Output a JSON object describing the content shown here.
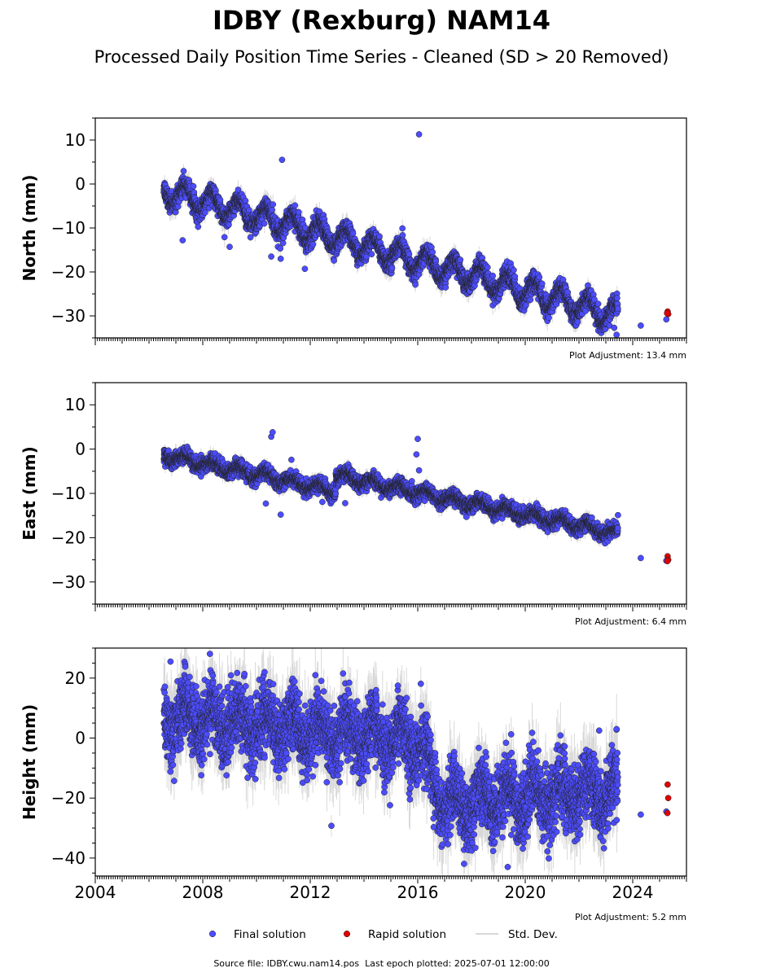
{
  "title": "IDBY (Rexburg) NAM14",
  "subtitle": "Processed Daily Position Time Series - Cleaned (SD > 20 Removed)",
  "footer": {
    "source_label": "Source file:",
    "source_file": "IDBY.cwu.nam14.pos",
    "last_epoch_label": "Last epoch plotted:",
    "last_epoch": "2025-07-01 12:00:00"
  },
  "legend": {
    "position": "bottom-center",
    "items": [
      {
        "label": "Final solution",
        "color": "#4c4cff",
        "marker": "circle"
      },
      {
        "label": "Rapid solution",
        "color": "#e00000",
        "marker": "circle"
      },
      {
        "label": "Std. Dev.",
        "color": "#cccccc",
        "marker": "line"
      }
    ]
  },
  "colors": {
    "final": "#4c4cff",
    "rapid": "#e00000",
    "stddev": "#bbbbbb",
    "marker_edge": "#222222"
  },
  "chart_data": [
    {
      "type": "scatter",
      "component": "north",
      "ylabel": "North (mm)",
      "xlim": [
        2004.0,
        2026.0
      ],
      "ylim": [
        -35,
        15
      ],
      "yticks": [
        10,
        0,
        -10,
        -20,
        -30
      ],
      "grid": false,
      "adjustment_label": "Plot Adjustment: 13.4 mm",
      "trend": [
        [
          2006.6,
          -1.5
        ],
        [
          2023.4,
          -30.0
        ]
      ],
      "seasonal_amplitude": 2.5,
      "noise_sd": 1.1,
      "series": [
        {
          "name": "Final solution",
          "start": 2006.55,
          "end": 2023.45,
          "outliers": [
            [
              2010.95,
              5.5
            ],
            [
              2016.05,
              11.3
            ],
            [
              2007.25,
              -12.8
            ],
            [
              2009.0,
              -14.3
            ],
            [
              2010.55,
              -16.5
            ],
            [
              2010.9,
              -17.0
            ],
            [
              2011.8,
              -19.3
            ],
            [
              2023.4,
              -34.3
            ]
          ],
          "isolated": [
            [
              2024.3,
              -32.2
            ],
            [
              2025.25,
              -30.8
            ]
          ]
        },
        {
          "name": "Rapid solution",
          "points": [
            [
              2025.3,
              -29.0
            ],
            [
              2025.32,
              -29.6
            ],
            [
              2025.28,
              -29.4
            ]
          ]
        }
      ]
    },
    {
      "type": "scatter",
      "component": "east",
      "ylabel": "East (mm)",
      "xlim": [
        2004.0,
        2026.0
      ],
      "ylim": [
        -35,
        15
      ],
      "yticks": [
        10,
        0,
        -10,
        -20,
        -30
      ],
      "grid": false,
      "adjustment_label": "Plot Adjustment: 6.4 mm",
      "trend": [
        [
          2006.6,
          -1.5
        ],
        [
          2023.4,
          -22.5
        ]
      ],
      "offset": {
        "at": 2012.95,
        "value": 3.5
      },
      "seasonal_amplitude": 0.9,
      "noise_sd": 0.8,
      "series": [
        {
          "name": "Final solution",
          "start": 2006.55,
          "end": 2023.45,
          "outliers": [
            [
              2010.55,
              2.8
            ],
            [
              2010.6,
              3.8
            ],
            [
              2016.0,
              2.3
            ],
            [
              2015.95,
              -1.2
            ],
            [
              2016.05,
              -4.8
            ],
            [
              2010.35,
              -12.3
            ],
            [
              2010.9,
              -14.8
            ],
            [
              2011.3,
              -2.4
            ],
            [
              2013.3,
              -12.2
            ],
            [
              2023.45,
              -14.9
            ]
          ],
          "isolated": [
            [
              2024.3,
              -24.6
            ],
            [
              2025.25,
              -25.2
            ]
          ]
        },
        {
          "name": "Rapid solution",
          "points": [
            [
              2025.3,
              -24.2
            ],
            [
              2025.32,
              -25.0
            ],
            [
              2025.29,
              -25.3
            ]
          ]
        }
      ]
    },
    {
      "type": "scatter",
      "component": "height",
      "ylabel": "Height (mm)",
      "xlim": [
        2004.0,
        2026.0
      ],
      "ylim": [
        -46,
        30
      ],
      "yticks": [
        20,
        0,
        -20,
        -40
      ],
      "xticks": [
        "2004",
        "2008",
        "2012",
        "2016",
        "2020",
        "2024"
      ],
      "grid": false,
      "adjustment_label": "Plot Adjustment: 5.2 mm",
      "trend": [
        [
          2006.6,
          7.0
        ],
        [
          2016.0,
          -1.0
        ],
        [
          2017.0,
          -22.0
        ],
        [
          2023.4,
          -18.0
        ]
      ],
      "seasonal_amplitude": 5.0,
      "noise_sd": 5.5,
      "series": [
        {
          "name": "Final solution",
          "start": 2006.55,
          "end": 2023.45,
          "outliers": [
            [
              2006.8,
              25.5
            ],
            [
              2007.35,
              23.8
            ],
            [
              2010.3,
              22.0
            ],
            [
              2014.45,
              16.0
            ],
            [
              2022.75,
              2.5
            ],
            [
              2023.4,
              3.0
            ],
            [
              2019.35,
              -43.0
            ]
          ],
          "isolated": [
            [
              2024.3,
              -25.5
            ],
            [
              2025.25,
              -24.5
            ]
          ]
        },
        {
          "name": "Rapid solution",
          "points": [
            [
              2025.3,
              -15.5
            ],
            [
              2025.32,
              -20.0
            ],
            [
              2025.29,
              -25.0
            ]
          ]
        }
      ]
    }
  ]
}
